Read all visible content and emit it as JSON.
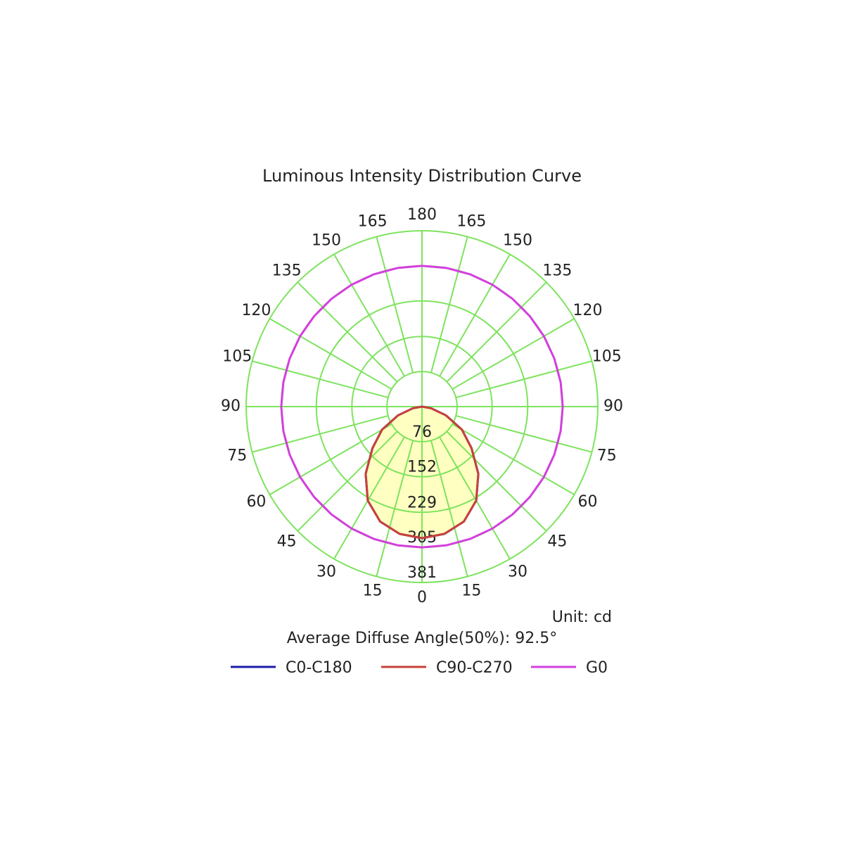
{
  "chart_data": {
    "type": "polar",
    "title": "Luminous Intensity Distribution Curve",
    "unit_label": "Unit: cd",
    "annotation": "Average Diffuse Angle(50%): 92.5°",
    "x": [
      -180,
      -170,
      -160,
      -150,
      -140,
      -130,
      -120,
      -110,
      -100,
      -90,
      -80,
      -70,
      -60,
      -50,
      -40,
      -30,
      -20,
      -10,
      0,
      10,
      20,
      30,
      40,
      50,
      60,
      70,
      80,
      90,
      100,
      110,
      120,
      130,
      140,
      150,
      160,
      170,
      180
    ],
    "series": [
      {
        "name": "C0-C180",
        "color": "#1c1ca8",
        "fill": null,
        "values": [
          null,
          null,
          null,
          null,
          null,
          null,
          null,
          null,
          null,
          0,
          20,
          55,
          100,
          140,
          190,
          235,
          265,
          280,
          285,
          280,
          265,
          235,
          190,
          140,
          100,
          55,
          20,
          0,
          null,
          null,
          null,
          null,
          null,
          null,
          null,
          null,
          null
        ]
      },
      {
        "name": "C90-C270",
        "color": "#c8413a",
        "fill": "#ffffc2",
        "values": [
          null,
          null,
          null,
          null,
          null,
          null,
          null,
          null,
          null,
          0,
          20,
          55,
          100,
          140,
          190,
          235,
          265,
          280,
          285,
          280,
          265,
          235,
          190,
          140,
          100,
          55,
          20,
          0,
          null,
          null,
          null,
          null,
          null,
          null,
          null,
          null,
          null
        ]
      },
      {
        "name": "G0",
        "color": "#d43fde",
        "fill": null,
        "values": [
          305,
          305,
          305,
          305,
          305,
          305,
          305,
          305,
          305,
          305,
          305,
          305,
          305,
          305,
          305,
          305,
          305,
          305,
          305,
          305,
          305,
          305,
          305,
          305,
          305,
          305,
          305,
          305,
          305,
          305,
          305,
          305,
          305,
          305,
          305,
          305,
          305
        ]
      }
    ],
    "rlim": [
      0,
      381
    ],
    "rticks": [
      76,
      152,
      229,
      305,
      381
    ],
    "thetaticks": [
      0,
      15,
      30,
      45,
      60,
      75,
      90,
      105,
      120,
      135,
      150,
      165,
      180
    ],
    "grid_color": "#7ee35e"
  }
}
